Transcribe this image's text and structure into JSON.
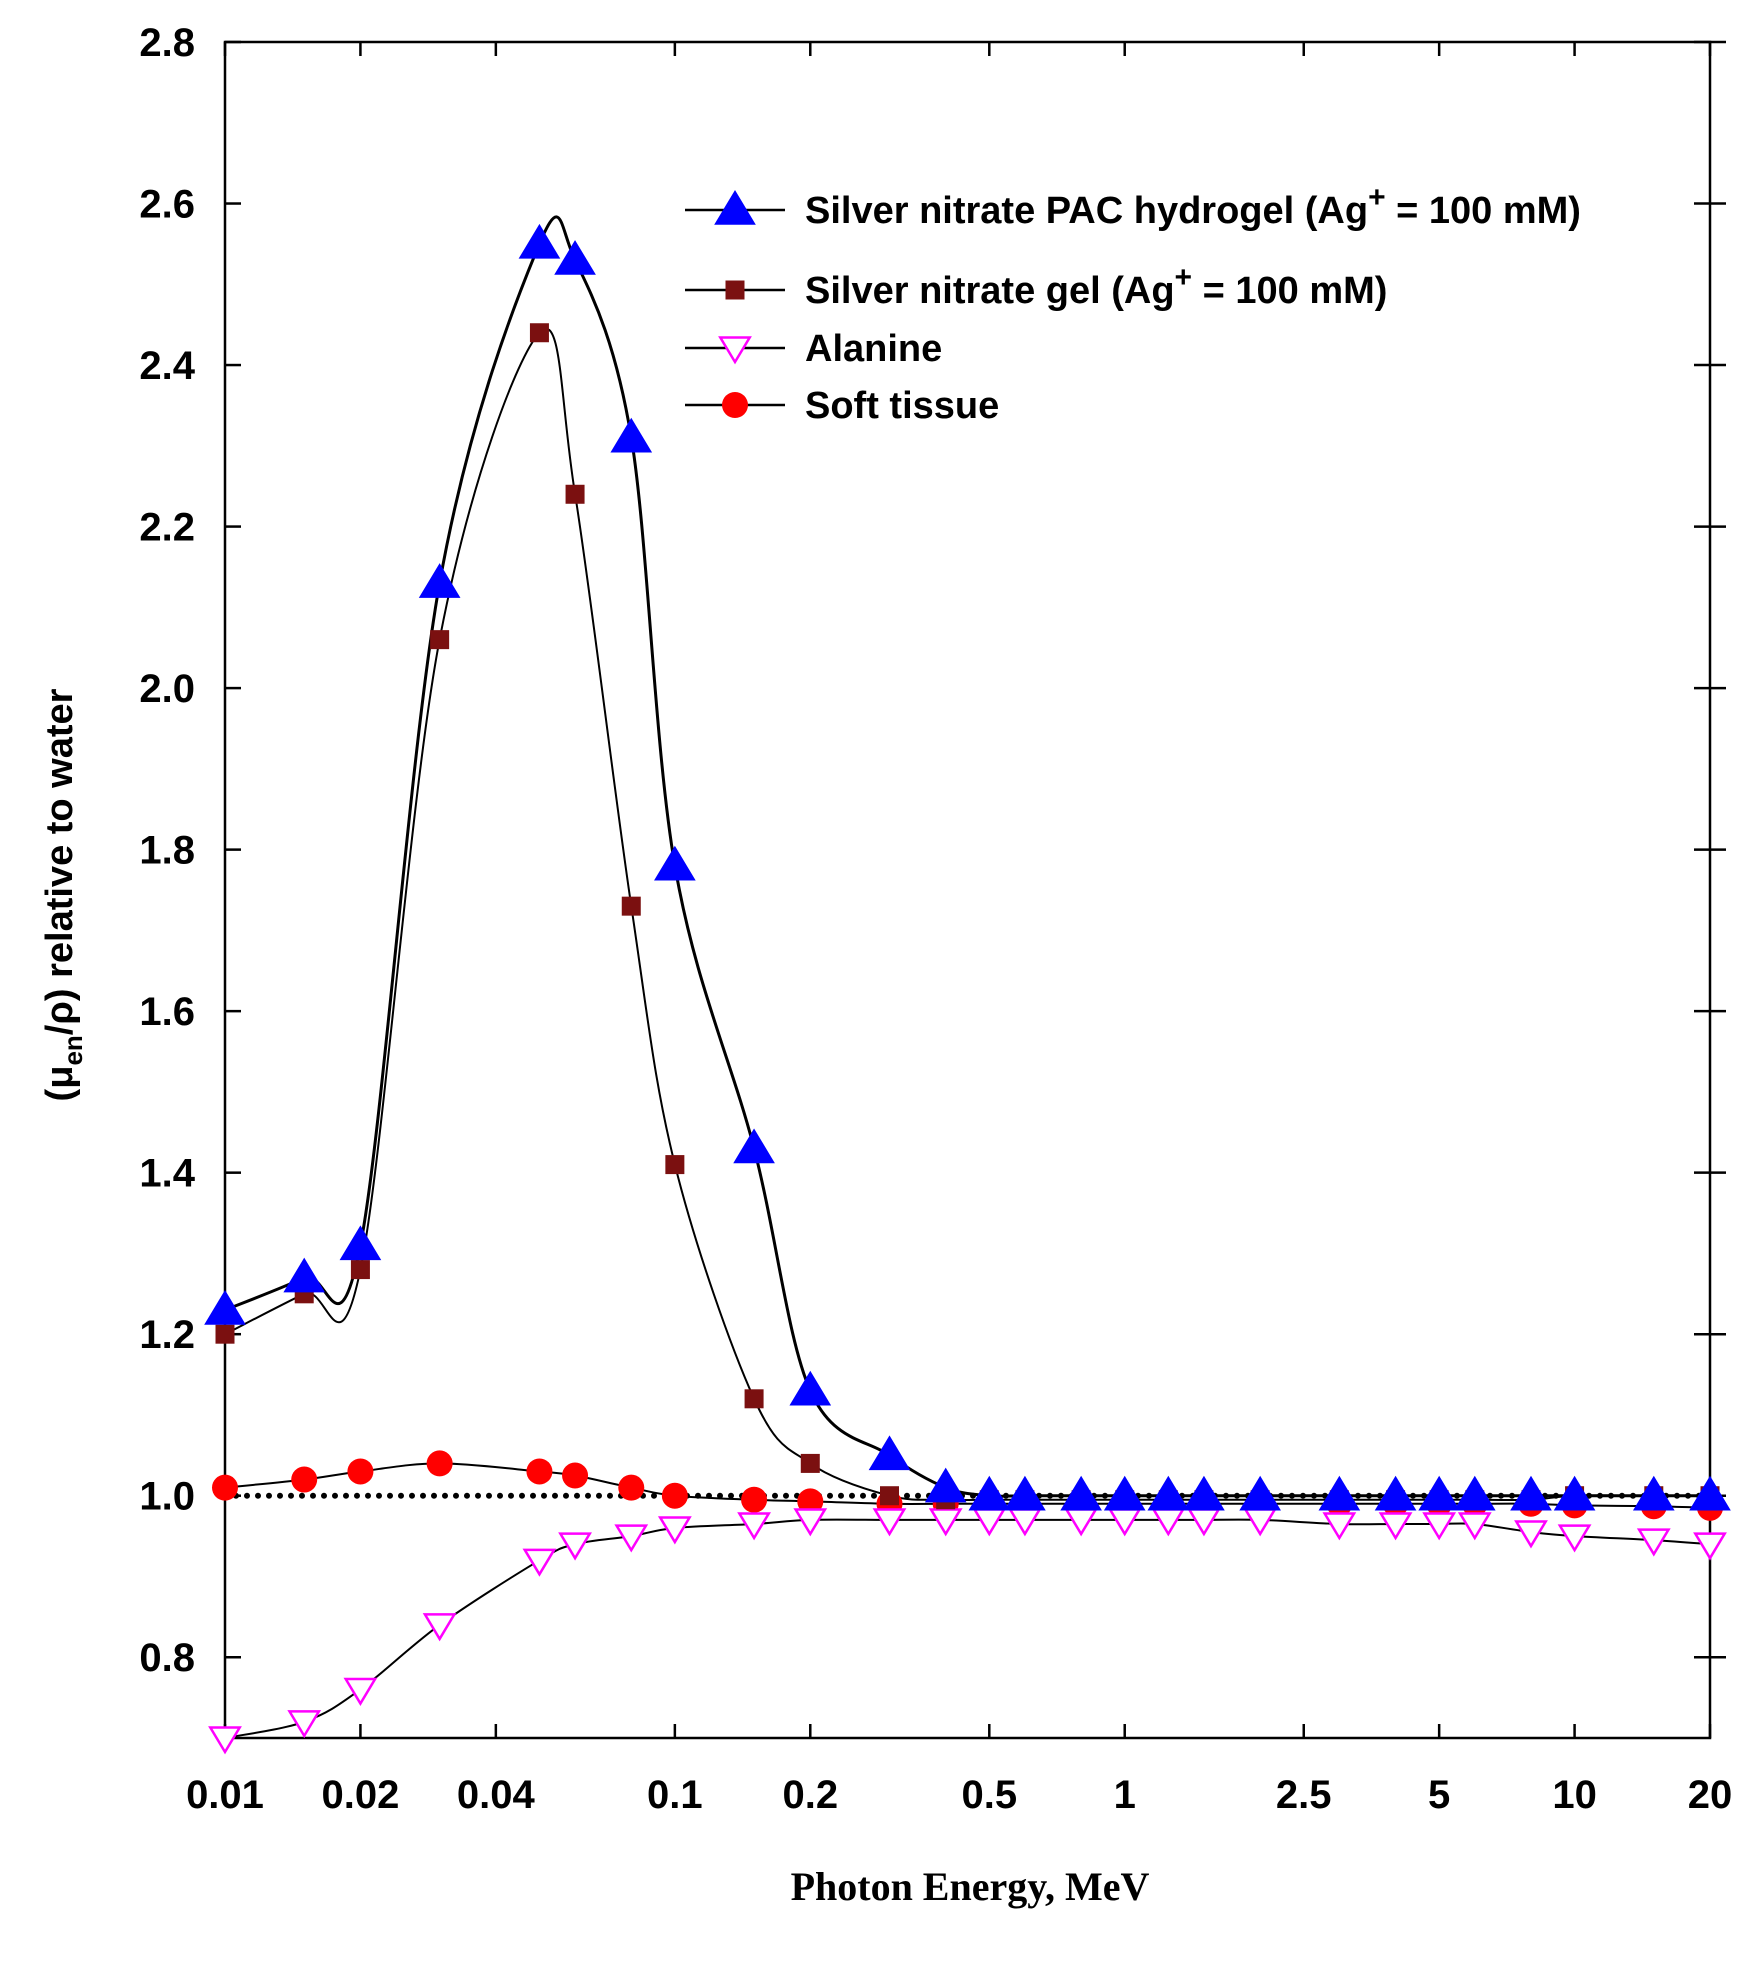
{
  "chart_data": {
    "type": "line",
    "title": "",
    "xlabel": "Photon Energy, MeV",
    "ylabel": {
      "prefix": "(μ",
      "sub": "en",
      "mid": "/ρ)",
      "suffix": " relative to water"
    },
    "xscale": "log",
    "xlim": [
      0.01,
      20
    ],
    "ylim": [
      0.7,
      2.8
    ],
    "xticks": [
      {
        "value": 0.01,
        "label": "0.01"
      },
      {
        "value": 0.02,
        "label": "0.02"
      },
      {
        "value": 0.04,
        "label": "0.04"
      },
      {
        "value": 0.1,
        "label": "0.1"
      },
      {
        "value": 0.2,
        "label": "0.2"
      },
      {
        "value": 0.5,
        "label": "0.5"
      },
      {
        "value": 1,
        "label": "1"
      },
      {
        "value": 2.5,
        "label": "2.5"
      },
      {
        "value": 5,
        "label": "5"
      },
      {
        "value": 10,
        "label": "10"
      },
      {
        "value": 20,
        "label": "20"
      }
    ],
    "yticks": [
      {
        "value": 0.8,
        "label": "0.8"
      },
      {
        "value": 1.0,
        "label": "1.0"
      },
      {
        "value": 1.2,
        "label": "1.2"
      },
      {
        "value": 1.4,
        "label": "1.4"
      },
      {
        "value": 1.6,
        "label": "1.6"
      },
      {
        "value": 1.8,
        "label": "1.8"
      },
      {
        "value": 2.0,
        "label": "2.0"
      },
      {
        "value": 2.2,
        "label": "2.2"
      },
      {
        "value": 2.4,
        "label": "2.4"
      },
      {
        "value": 2.6,
        "label": "2.6"
      },
      {
        "value": 2.8,
        "label": "2.8"
      }
    ],
    "reference_line": 1.0,
    "x": [
      0.01,
      0.015,
      0.02,
      0.03,
      0.05,
      0.06,
      0.08,
      0.1,
      0.15,
      0.2,
      0.3,
      0.4,
      0.5,
      0.6,
      0.8,
      1,
      1.25,
      1.5,
      2,
      3,
      4,
      5,
      6,
      8,
      10,
      15,
      20
    ],
    "series": [
      {
        "name": "Silver nitrate PAC hydrogel (Ag+ = 100 mM)",
        "legend": {
          "text": "Silver nitrate PAC hydrogel (Ag",
          "sup": "+",
          "tail": " = 100 mM)"
        },
        "marker": "triangle-up",
        "color": "#0000ff",
        "values": [
          1.23,
          1.27,
          1.31,
          2.13,
          2.55,
          2.53,
          2.31,
          1.78,
          1.43,
          1.13,
          1.05,
          1.01,
          1.0,
          1.0,
          1.0,
          1.0,
          1.0,
          1.0,
          1.0,
          1.0,
          1.0,
          1.0,
          1.0,
          1.0,
          1.0,
          1.0,
          1.0
        ]
      },
      {
        "name": "Silver nitrate gel (Ag+ = 100 mM)",
        "legend": {
          "text": "Silver nitrate gel (Ag",
          "sup": "+",
          "tail": " = 100 mM)"
        },
        "marker": "square",
        "color": "#7b1010",
        "values": [
          1.2,
          1.25,
          1.28,
          2.06,
          2.44,
          2.24,
          1.73,
          1.41,
          1.12,
          1.04,
          1.0,
          0.995,
          0.995,
          0.995,
          0.995,
          0.995,
          0.995,
          0.995,
          0.995,
          0.995,
          0.995,
          0.995,
          0.995,
          0.995,
          1.0,
          1.0,
          1.0
        ]
      },
      {
        "name": "Alanine",
        "legend": {
          "text": "Alanine",
          "sup": "",
          "tail": ""
        },
        "marker": "triangle-down-open",
        "color": "#ff00ff",
        "values": [
          0.7,
          0.72,
          0.76,
          0.84,
          0.92,
          0.94,
          0.95,
          0.96,
          0.965,
          0.97,
          0.97,
          0.97,
          0.97,
          0.97,
          0.97,
          0.97,
          0.97,
          0.97,
          0.97,
          0.965,
          0.965,
          0.965,
          0.965,
          0.955,
          0.95,
          0.945,
          0.94
        ]
      },
      {
        "name": "Soft tissue",
        "legend": {
          "text": "Soft tissue",
          "sup": "",
          "tail": ""
        },
        "marker": "circle",
        "color": "#ff0000",
        "values": [
          1.01,
          1.02,
          1.03,
          1.04,
          1.03,
          1.025,
          1.01,
          1.0,
          0.995,
          0.993,
          0.99,
          0.99,
          0.99,
          0.99,
          0.99,
          0.99,
          0.99,
          0.99,
          0.99,
          0.99,
          0.99,
          0.99,
          0.99,
          0.99,
          0.988,
          0.987,
          0.985
        ]
      }
    ],
    "legend_position": "top-right"
  }
}
